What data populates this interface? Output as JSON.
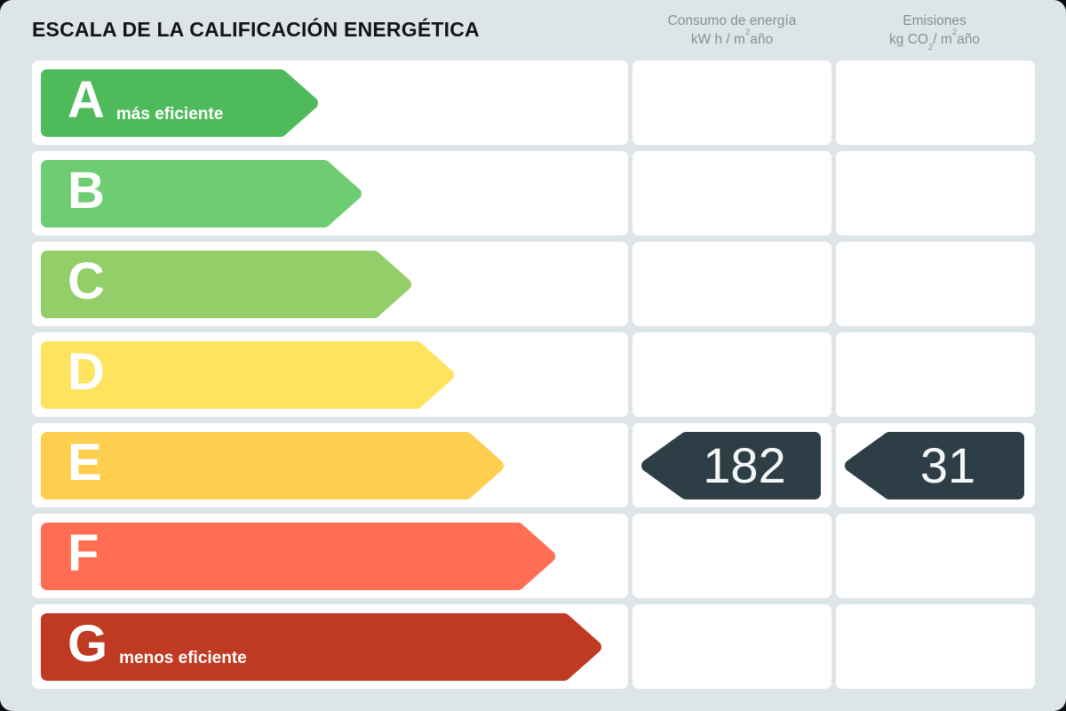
{
  "title": "ESCALA DE LA CALIFICACIÓN ENERGÉTICA",
  "header": {
    "consumption_line1": "Consumo de energía",
    "consumption_line2": {
      "pre": "kW h / m",
      "sup": "2",
      "post": "año"
    },
    "emissions_line1": "Emisiones",
    "emissions_line2": {
      "pre": "kg CO",
      "sub": "2",
      "mid": "/ m",
      "sup": "2",
      "post": "año"
    }
  },
  "colors": {
    "background": "#dee5e8",
    "cell": "#ffffff",
    "title_text": "#111518",
    "header_text": "#829096",
    "bar_text": "#ffffff",
    "badge": "#2e3e46",
    "badge_text": "#f6f8f8"
  },
  "ratings": [
    {
      "letter": "A",
      "label": "más eficiente",
      "color": "#4eba5a",
      "width_pct": 48.0
    },
    {
      "letter": "B",
      "label": "",
      "color": "#6ecd73",
      "width_pct": 55.5
    },
    {
      "letter": "C",
      "label": "",
      "color": "#94ce69",
      "width_pct": 64.0
    },
    {
      "letter": "D",
      "label": "",
      "color": "#fde35e",
      "width_pct": 71.5
    },
    {
      "letter": "E",
      "label": "",
      "color": "#fecf4f",
      "width_pct": 80.0
    },
    {
      "letter": "F",
      "label": "",
      "color": "#ff6d52",
      "width_pct": 89.0
    },
    {
      "letter": "G",
      "label": "menos eficiente",
      "color": "#c03a23",
      "width_pct": 97.0
    }
  ],
  "result": {
    "rating": "E",
    "consumption": "182",
    "emissions": "31"
  },
  "chart_data": {
    "type": "bar",
    "title": "ESCALA DE LA CALIFICACIÓN ENERGÉTICA",
    "categories": [
      "A",
      "B",
      "C",
      "D",
      "E",
      "F",
      "G"
    ],
    "values": [
      48.0,
      55.5,
      64.0,
      71.5,
      80.0,
      89.0,
      97.0
    ],
    "bar_colors": [
      "#4eba5a",
      "#6ecd73",
      "#94ce69",
      "#fde35e",
      "#fecf4f",
      "#ff6d52",
      "#c03a23"
    ],
    "annotations": {
      "A": "más eficiente",
      "G": "menos eficiente"
    },
    "columns": [
      "Consumo de energía kW h / m²año",
      "Emisiones kg CO₂/ m²año"
    ],
    "assigned_rating": "E",
    "consumption_kwh_m2_year": 182,
    "emissions_kgco2_m2_year": 31,
    "legend_position": "none",
    "grid": false
  }
}
